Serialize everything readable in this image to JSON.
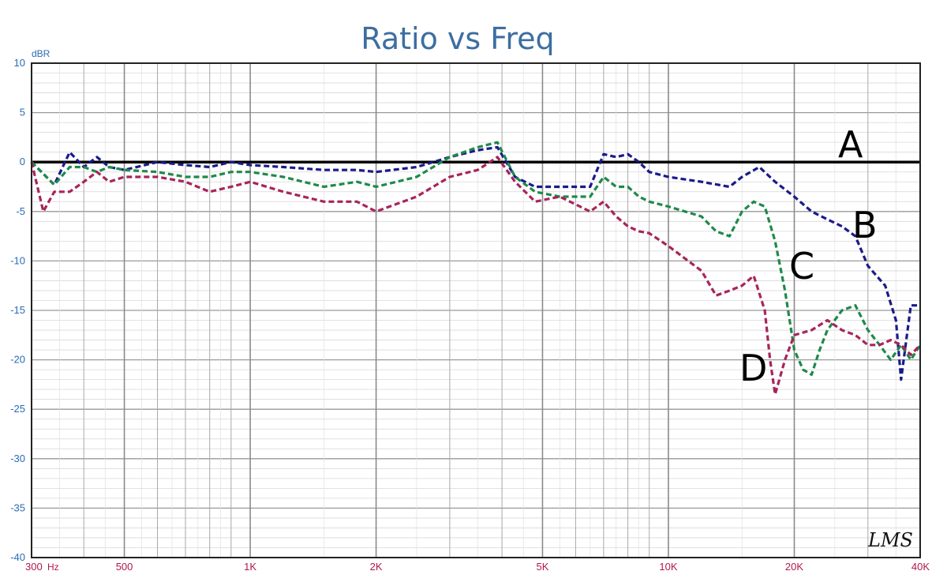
{
  "chart_data": {
    "type": "line",
    "title": "Ratio vs Freq",
    "ylabel": "dBR",
    "xlabel": "",
    "x_scale": "log",
    "xlim": [
      300,
      40000
    ],
    "ylim": [
      -40,
      10
    ],
    "grid": true,
    "y_ticks": [
      "10",
      "5",
      "0",
      "-5",
      "-10",
      "-15",
      "-20",
      "-25",
      "-30",
      "-35",
      "-40"
    ],
    "x_ticks": [
      {
        "value": 300,
        "label": "300"
      },
      {
        "value": 500,
        "label": "500"
      },
      {
        "value": 1000,
        "label": "1K"
      },
      {
        "value": 2000,
        "label": "2K"
      },
      {
        "value": 5000,
        "label": "5K"
      },
      {
        "value": 10000,
        "label": "10K"
      },
      {
        "value": 20000,
        "label": "20K"
      },
      {
        "value": 40000,
        "label": "40K"
      }
    ],
    "x_unit_label": "Hz",
    "logo_text": "LMS",
    "series": [
      {
        "name": "A",
        "color": "#000000",
        "style": "solid",
        "x": [
          300,
          40000
        ],
        "y": [
          0,
          0
        ]
      },
      {
        "name": "B",
        "color": "#1a1a8c",
        "style": "dashed",
        "x": [
          300,
          340,
          370,
          400,
          430,
          460,
          500,
          600,
          700,
          800,
          900,
          1000,
          1200,
          1500,
          1800,
          2000,
          2500,
          3000,
          3500,
          3900,
          4300,
          4800,
          5500,
          6500,
          7000,
          7500,
          8000,
          8500,
          9000,
          10000,
          12000,
          14000,
          15000,
          16500,
          18000,
          20000,
          22000,
          24000,
          26000,
          28000,
          30000,
          33000,
          35000,
          36000,
          38000,
          40000
        ],
        "y": [
          0,
          -2.3,
          1,
          -0.5,
          0.5,
          -0.5,
          -0.8,
          0,
          -0.3,
          -0.5,
          0,
          -0.3,
          -0.5,
          -0.8,
          -0.8,
          -1,
          -0.5,
          0.5,
          1.2,
          1.5,
          -1.5,
          -2.5,
          -2.5,
          -2.5,
          0.8,
          0.5,
          0.8,
          0,
          -1,
          -1.5,
          -2,
          -2.5,
          -1.5,
          -0.5,
          -2,
          -3.5,
          -5,
          -5.8,
          -6.5,
          -7.5,
          -10.5,
          -12.5,
          -16,
          -22,
          -14.5,
          -14.5
        ]
      },
      {
        "name": "C",
        "color": "#1e8a4a",
        "style": "dashed",
        "x": [
          300,
          340,
          370,
          400,
          430,
          460,
          500,
          600,
          700,
          800,
          900,
          1000,
          1200,
          1500,
          1800,
          2000,
          2500,
          3000,
          3500,
          3900,
          4300,
          4800,
          5500,
          6500,
          7000,
          7500,
          8000,
          8500,
          9000,
          10000,
          12000,
          13000,
          14000,
          15000,
          16000,
          17000,
          18000,
          19000,
          20000,
          21000,
          22000,
          23000,
          24000,
          26000,
          28000,
          30000,
          32000,
          34000,
          36000,
          38000,
          40000
        ],
        "y": [
          0,
          -2.3,
          -0.5,
          -0.5,
          -1,
          -0.5,
          -0.8,
          -1,
          -1.5,
          -1.5,
          -1,
          -1,
          -1.5,
          -2.5,
          -2,
          -2.5,
          -1.5,
          0.5,
          1.5,
          2,
          -1.5,
          -3,
          -3.5,
          -3.5,
          -1.5,
          -2.5,
          -2.5,
          -3.5,
          -4,
          -4.5,
          -5.5,
          -7,
          -7.5,
          -5,
          -4,
          -4.5,
          -8,
          -13,
          -19,
          -21,
          -21.5,
          -19,
          -17,
          -15,
          -14.5,
          -17,
          -18.5,
          -20,
          -18.5,
          -20,
          -18.5
        ]
      },
      {
        "name": "D",
        "color": "#a8245a",
        "style": "dashed",
        "x": [
          300,
          320,
          340,
          370,
          400,
          430,
          460,
          500,
          600,
          700,
          800,
          900,
          1000,
          1200,
          1500,
          1800,
          2000,
          2500,
          3000,
          3500,
          3900,
          4300,
          4800,
          5500,
          6500,
          7000,
          7500,
          8000,
          8500,
          9000,
          10000,
          12000,
          13000,
          14000,
          15000,
          16000,
          17000,
          17500,
          18000,
          19000,
          20000,
          22000,
          24000,
          26000,
          28000,
          30000,
          32000,
          34000,
          36000,
          38000,
          40000
        ],
        "y": [
          0,
          -5,
          -3,
          -3,
          -2,
          -1,
          -2,
          -1.5,
          -1.5,
          -2,
          -3,
          -2.5,
          -2,
          -3,
          -4,
          -4,
          -5,
          -3.5,
          -1.5,
          -0.8,
          0.5,
          -2,
          -4,
          -3.5,
          -5,
          -4,
          -5.5,
          -6.5,
          -7,
          -7.2,
          -8.5,
          -11,
          -13.5,
          -13,
          -12.5,
          -11.5,
          -15,
          -20,
          -23.5,
          -20,
          -17.5,
          -17,
          -16,
          -17,
          -17.5,
          -18.5,
          -18.5,
          -18,
          -18.5,
          -19.5,
          -18.5
        ]
      }
    ]
  }
}
